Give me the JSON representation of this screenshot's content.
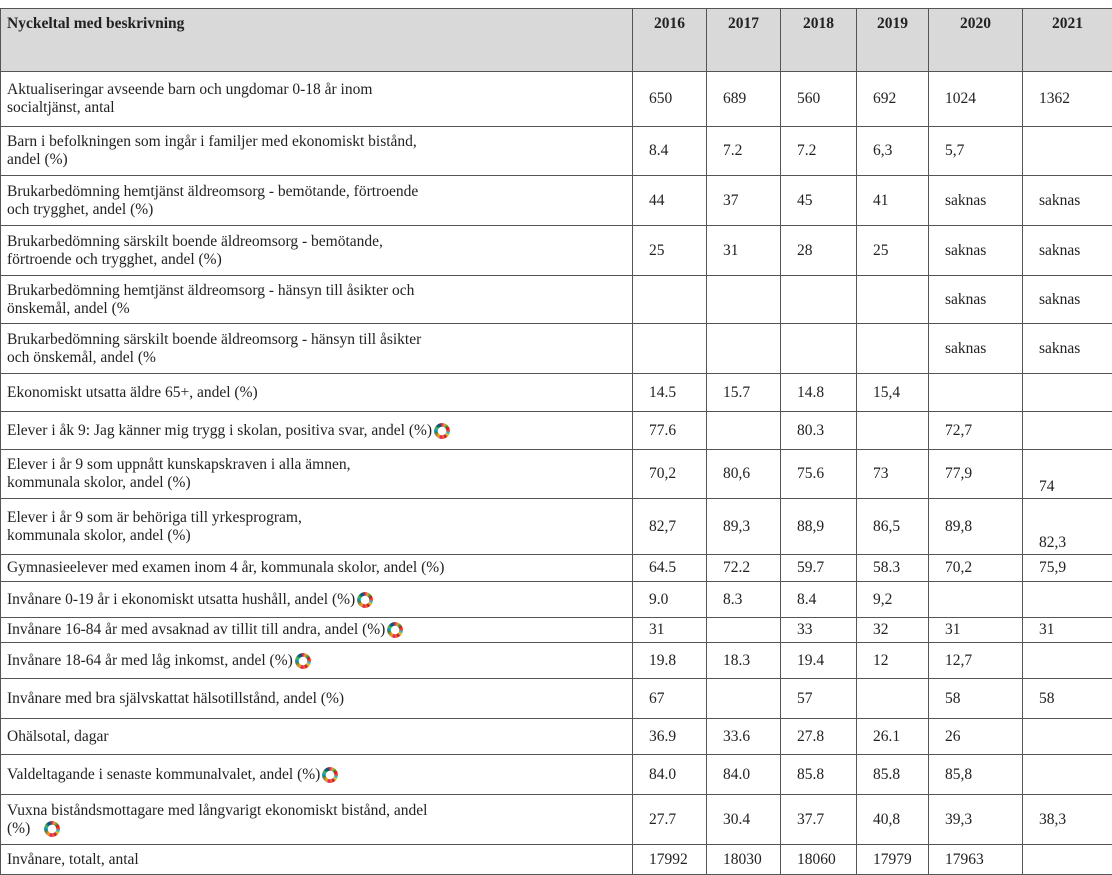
{
  "table": {
    "header": [
      "Nyckeltal med beskrivning",
      "2016",
      "2017",
      "2018",
      "2019",
      "2020",
      "2021"
    ],
    "rows": [
      {
        "lines": [
          "Aktualiseringar avseende barn och ungdomar 0-18 år inom",
          "socialtjänst, antal"
        ],
        "values": [
          "650",
          "689",
          "560",
          "692",
          "1024",
          "1362"
        ]
      },
      {
        "lines": [
          "Barn i befolkningen som ingår i familjer med ekonomiskt bistånd,",
          "andel (%)"
        ],
        "values": [
          "8.4",
          "7.2",
          "7.2",
          "6,3",
          "5,7",
          null
        ]
      },
      {
        "lines": [
          "Brukarbedömning hemtjänst äldreomsorg - bemötande, förtroende",
          "och trygghet, andel (%)"
        ],
        "values": [
          "44",
          "37",
          "45",
          "41",
          "saknas",
          "saknas"
        ]
      },
      {
        "lines": [
          "Brukarbedömning särskilt boende äldreomsorg - bemötande,",
          "förtroende och trygghet, andel (%)"
        ],
        "values": [
          "25",
          "31",
          "28",
          "25",
          "saknas",
          "saknas"
        ]
      },
      {
        "lines": [
          "Brukarbedömning hemtjänst äldreomsorg - hänsyn till åsikter och",
          "önskemål, andel (%"
        ],
        "values": [
          null,
          null,
          null,
          null,
          "saknas",
          "saknas"
        ]
      },
      {
        "lines": [
          "Brukarbedömning särskilt boende äldreomsorg - hänsyn till åsikter",
          "och önskemål, andel (%"
        ],
        "values": [
          null,
          null,
          null,
          null,
          "saknas",
          "saknas"
        ]
      },
      {
        "lines": [
          "Ekonomiskt utsatta äldre 65+, andel (%)"
        ],
        "values": [
          "14.5",
          "15.7",
          "14.8",
          "15,4",
          null,
          null
        ]
      },
      {
        "lines": [
          "Elever i åk 9: Jag känner mig trygg i skolan, positiva svar, andel (%)"
        ],
        "values": [
          "77.6",
          null,
          "80.3",
          null,
          "72,7",
          null
        ]
      },
      {
        "lines": [
          "Elever i år 9 som uppnått kunskapskraven i alla ämnen,",
          "kommunala skolor, andel (%)"
        ],
        "values": [
          "70,2",
          "80,6",
          "75.6",
          "73",
          "77,9",
          "74"
        ]
      },
      {
        "lines": [
          "Elever i år 9 som är behöriga till yrkesprogram,",
          "kommunala skolor, andel (%)"
        ],
        "values": [
          "82,7",
          "89,3",
          "88,9",
          "86,5",
          "89,8",
          "82,3"
        ]
      },
      {
        "lines": [
          "Gymnasieelever med examen inom 4 år, kommunala skolor, andel (%)"
        ],
        "values": [
          "64.5",
          "72.2",
          "59.7",
          "58.3",
          "70,2",
          "75,9"
        ]
      },
      {
        "lines": [
          "Invånare 0-19 år i ekonomiskt utsatta hushåll, andel (%)"
        ],
        "values": [
          "9.0",
          "8.3",
          "8.4",
          "9,2",
          null,
          null
        ]
      },
      {
        "lines": [
          "Invånare 16-84 år med avsaknad av tillit till andra, andel (%)"
        ],
        "values": [
          "31",
          null,
          "33",
          "32",
          "31",
          "31"
        ]
      },
      {
        "lines": [
          "Invånare 18-64 år med låg inkomst, andel (%)"
        ],
        "values": [
          "19.8",
          "18.3",
          "19.4",
          "12",
          "12,7",
          null
        ]
      },
      {
        "lines": [
          "Invånare med bra självskattat hälsotillstånd, andel (%)"
        ],
        "values": [
          "67",
          null,
          "57",
          null,
          "58",
          "58"
        ]
      },
      {
        "lines": [
          "Ohälsotal, dagar"
        ],
        "values": [
          "36.9",
          "33.6",
          "27.8",
          "26.1",
          "26",
          null
        ]
      },
      {
        "lines": [
          "Valdeltagande i senaste kommunalvalet, andel (%)"
        ],
        "values": [
          "84.0",
          "84.0",
          "85.8",
          "85.8",
          "85,8",
          null
        ]
      },
      {
        "lines": [
          "Vuxna biståndsmottagare med långvarigt ekonomiskt bistånd, andel",
          "(%)"
        ],
        "values": [
          "27.7",
          "30.4",
          "37.7",
          "40,8",
          "39,3",
          "38,3"
        ]
      },
      {
        "lines": [
          "Invånare, totalt, antal"
        ],
        "values": [
          "17992",
          "18030",
          "18060",
          "17979",
          "17963",
          null
        ]
      }
    ]
  }
}
